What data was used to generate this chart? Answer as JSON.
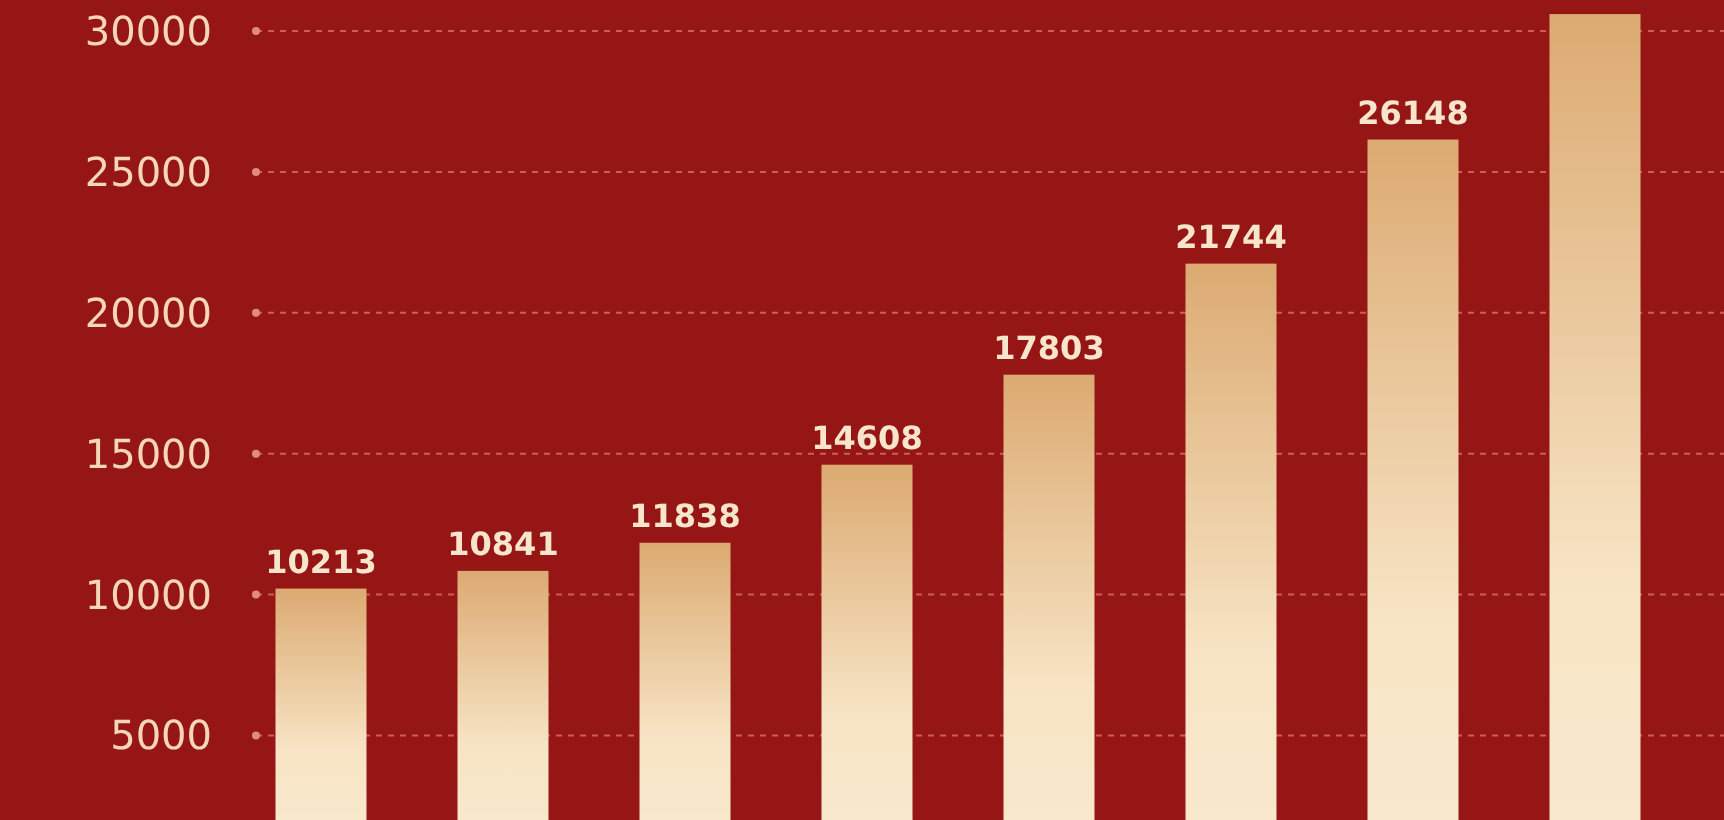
{
  "chart_data": {
    "type": "bar",
    "categories": [
      null,
      null,
      null,
      null,
      null,
      null,
      null,
      null
    ],
    "values": [
      10213,
      10841,
      11838,
      14608,
      17803,
      21744,
      26148,
      30600
    ],
    "value_labels": [
      "10213",
      "10841",
      "11838",
      "14608",
      "17803",
      "21744",
      "26148",
      null
    ],
    "color": "#dcaa72",
    "ylim": [
      2000,
      31100
    ],
    "yticks": [
      5000,
      10000,
      15000,
      20000,
      25000,
      30000
    ],
    "grid": "y"
  }
}
